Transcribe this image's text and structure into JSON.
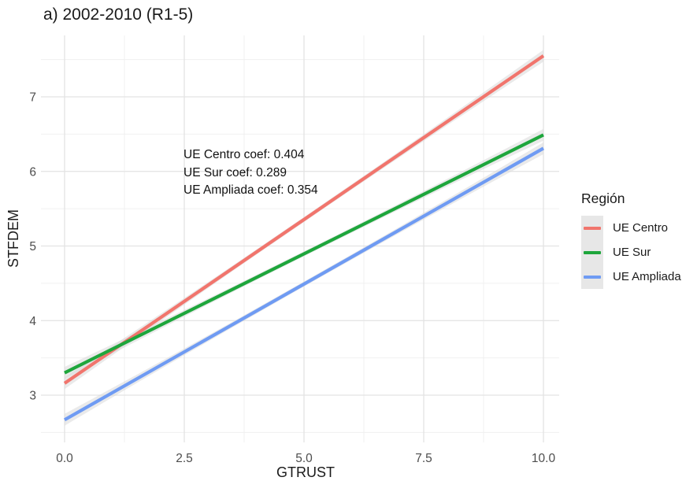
{
  "title": "a) 2002-2010 (R1-5)",
  "annotation": {
    "lines": [
      "UE Centro coef: 0.404",
      "UE Sur coef: 0.289",
      "UE Ampliada coef: 0.354"
    ]
  },
  "axes": {
    "x": {
      "label": "GTRUST",
      "tick_labels": [
        "0.0",
        "2.5",
        "5.0",
        "7.5",
        "10.0"
      ]
    },
    "y": {
      "label": "STFDEM",
      "tick_labels": [
        "3",
        "4",
        "5",
        "6",
        "7"
      ]
    }
  },
  "legend": {
    "title": "Región",
    "items": [
      {
        "label": "UE Centro",
        "color": "#F1756D"
      },
      {
        "label": "UE Sur",
        "color": "#1EA63C"
      },
      {
        "label": "UE Ampliada",
        "color": "#6F9BF3"
      }
    ]
  },
  "chart_data": {
    "type": "line",
    "title": "a) 2002-2010 (R1-5)",
    "xlabel": "GTRUST",
    "ylabel": "STFDEM",
    "xlim": [
      0,
      10
    ],
    "ylim": [
      2.4,
      7.8
    ],
    "x_ticks": [
      0,
      2.5,
      5,
      7.5,
      10
    ],
    "y_ticks": [
      3,
      4,
      5,
      6,
      7
    ],
    "grid": true,
    "legend_position": "right",
    "confidence_band": true,
    "series": [
      {
        "name": "UE Centro",
        "coef": 0.404,
        "color": "#F1756D",
        "x": [
          0,
          10
        ],
        "y": [
          3.16,
          7.55
        ]
      },
      {
        "name": "UE Sur",
        "coef": 0.289,
        "color": "#1EA63C",
        "x": [
          0,
          10
        ],
        "y": [
          3.3,
          6.49
        ]
      },
      {
        "name": "UE Ampliada",
        "coef": 0.354,
        "color": "#6F9BF3",
        "x": [
          0,
          10
        ],
        "y": [
          2.67,
          6.31
        ]
      }
    ],
    "band_color": "#D9D9D9",
    "grid_major_color": "#E3E3E3",
    "grid_minor_color": "#F0F0F0"
  }
}
